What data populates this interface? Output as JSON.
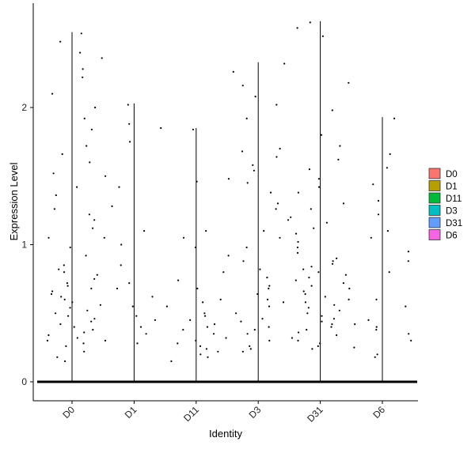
{
  "chart_data": {
    "type": "scatter",
    "subtype": "violin-jitter",
    "title": "",
    "xlabel": "Identity",
    "ylabel": "Expression Level",
    "categories": [
      "D0",
      "D1",
      "D11",
      "D3",
      "D31",
      "D6"
    ],
    "ylim": [
      -0.15,
      2.65
    ],
    "yticks": [
      0,
      1,
      2
    ],
    "grid": false,
    "legend": {
      "position": "right",
      "entries": [
        {
          "label": "D0",
          "color": "#F8766D"
        },
        {
          "label": "D1",
          "color": "#B79F00"
        },
        {
          "label": "D11",
          "color": "#00BA38"
        },
        {
          "label": "D3",
          "color": "#00BFC4"
        },
        {
          "label": "D31",
          "color": "#619CFF"
        },
        {
          "label": "D6",
          "color": "#F564E3"
        }
      ]
    },
    "series": [
      {
        "category": "D0",
        "max": 2.55,
        "points": [
          2.54,
          2.48,
          2.4,
          2.36,
          2.28,
          2.22,
          2.1,
          2.0,
          1.92,
          1.84,
          1.72,
          1.66,
          1.6,
          1.52,
          1.42,
          1.36,
          1.26,
          1.22,
          1.18,
          1.12,
          1.05,
          0.98,
          0.92,
          0.85,
          0.82,
          0.8,
          0.78,
          0.75,
          0.72,
          0.7,
          0.68,
          0.66,
          0.64,
          0.62,
          0.6,
          0.58,
          0.56,
          0.54,
          0.52,
          0.5,
          0.48,
          0.46,
          0.44,
          0.42,
          0.4,
          0.38,
          0.36,
          0.34,
          0.32,
          0.3,
          0.28,
          0.26,
          0.22,
          0.18,
          0.15
        ]
      },
      {
        "category": "D1",
        "max": 2.03,
        "points": [
          2.02,
          1.88,
          1.85,
          1.75,
          1.5,
          1.42,
          1.28,
          1.1,
          1.05,
          1.0,
          0.85,
          0.72,
          0.68,
          0.62,
          0.55,
          0.48,
          0.45,
          0.4,
          0.35,
          0.3,
          0.28
        ]
      },
      {
        "category": "D11",
        "max": 1.85,
        "points": [
          1.84,
          1.46,
          1.1,
          1.05,
          0.98,
          0.8,
          0.74,
          0.68,
          0.6,
          0.58,
          0.55,
          0.5,
          0.48,
          0.45,
          0.42,
          0.4,
          0.38,
          0.35,
          0.32,
          0.3,
          0.28,
          0.26,
          0.24,
          0.22,
          0.2,
          0.18,
          0.15
        ]
      },
      {
        "category": "D3",
        "max": 2.33,
        "points": [
          2.32,
          2.26,
          2.16,
          2.08,
          2.02,
          1.92,
          1.7,
          1.68,
          1.64,
          1.58,
          1.54,
          1.48,
          1.45,
          1.38,
          1.3,
          1.26,
          1.18,
          1.1,
          1.05,
          0.98,
          0.92,
          0.88,
          0.82,
          0.76,
          0.7,
          0.68,
          0.64,
          0.6,
          0.58,
          0.55,
          0.5,
          0.46,
          0.44,
          0.4,
          0.38,
          0.35,
          0.3,
          0.26,
          0.24,
          0.22
        ]
      },
      {
        "category": "D31",
        "max": 2.63,
        "points": [
          2.62,
          2.58,
          2.52,
          2.18,
          1.98,
          1.8,
          1.72,
          1.62,
          1.55,
          1.48,
          1.42,
          1.38,
          1.3,
          1.26,
          1.2,
          1.16,
          1.12,
          1.08,
          1.02,
          0.98,
          0.94,
          0.9,
          0.88,
          0.86,
          0.84,
          0.82,
          0.8,
          0.78,
          0.76,
          0.74,
          0.72,
          0.7,
          0.68,
          0.66,
          0.64,
          0.62,
          0.6,
          0.58,
          0.56,
          0.54,
          0.52,
          0.5,
          0.48,
          0.46,
          0.44,
          0.42,
          0.4,
          0.38,
          0.36,
          0.34,
          0.32,
          0.3,
          0.28,
          0.26,
          0.24
        ]
      },
      {
        "category": "D6",
        "max": 1.93,
        "points": [
          1.92,
          1.66,
          1.56,
          1.44,
          1.32,
          1.22,
          1.1,
          1.05,
          0.95,
          0.88,
          0.8,
          0.6,
          0.55,
          0.45,
          0.42,
          0.4,
          0.38,
          0.35,
          0.3,
          0.25,
          0.2,
          0.18
        ]
      }
    ]
  }
}
